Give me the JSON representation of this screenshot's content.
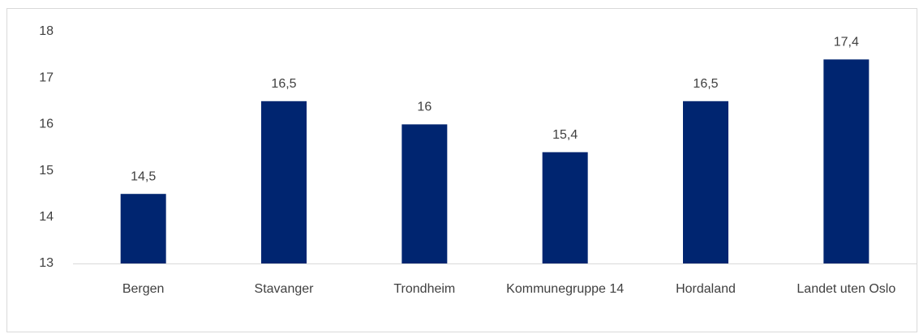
{
  "chart_data": {
    "type": "bar",
    "categories": [
      "Bergen",
      "Stavanger",
      "Trondheim",
      "Kommunegruppe 14",
      "Hordaland",
      "Landet uten Oslo"
    ],
    "values": [
      14.5,
      16.5,
      16,
      15.4,
      16.5,
      17.4
    ],
    "value_labels": [
      "14,5",
      "16,5",
      "16",
      "15,4",
      "16,5",
      "17,4"
    ],
    "color": "#002570",
    "ylim": [
      13,
      18
    ],
    "yticks": [
      13,
      14,
      15,
      16,
      17,
      18
    ],
    "grid": false
  }
}
